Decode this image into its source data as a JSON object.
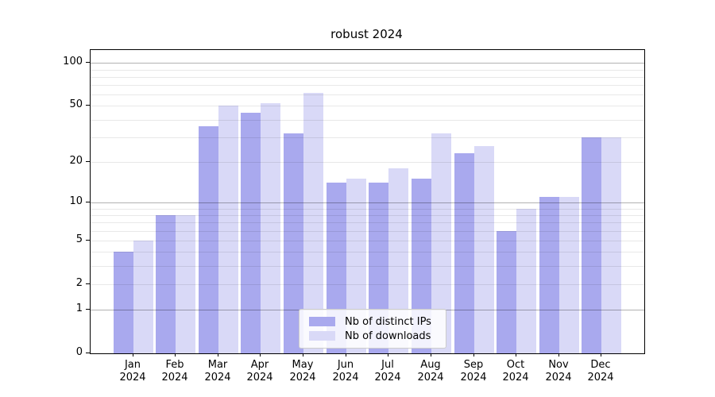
{
  "title": "robust 2024",
  "chart_data": {
    "type": "bar",
    "title": "robust 2024",
    "categories": [
      "Jan",
      "Feb",
      "Mar",
      "Apr",
      "May",
      "Jun",
      "Jul",
      "Aug",
      "Sep",
      "Oct",
      "Nov",
      "Dec"
    ],
    "category_year": "2024",
    "series": [
      {
        "name": "Nb of distinct IPs",
        "color": "#a9a9ee",
        "values": [
          4,
          8,
          36,
          45,
          32,
          14,
          14,
          15,
          23,
          6,
          11,
          30
        ]
      },
      {
        "name": "Nb of downloads",
        "color": "#d9d9f7",
        "values": [
          5,
          8,
          50,
          52,
          62,
          15,
          18,
          32,
          26,
          9,
          11,
          30
        ]
      }
    ],
    "y_scale": "log1p",
    "ylim": [
      0,
      123
    ],
    "y_ticks": [
      0,
      1,
      2,
      5,
      10,
      20,
      50,
      100
    ],
    "grid_major": [
      1,
      10,
      100
    ],
    "grid_minor": [
      2,
      3,
      4,
      5,
      6,
      7,
      8,
      9,
      20,
      30,
      40,
      50,
      60,
      70,
      80,
      90
    ],
    "legend_position": "lower center",
    "grid": true
  }
}
